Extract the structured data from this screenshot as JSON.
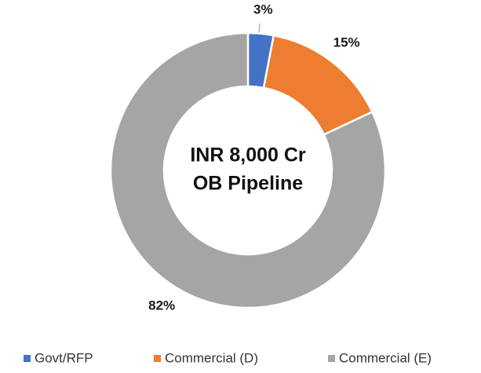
{
  "chart_data": {
    "type": "donut",
    "categories": [
      "Govt/RFP",
      "Commercial (D)",
      "Commercial (E)"
    ],
    "values": [
      3,
      15,
      82
    ],
    "value_labels": [
      "3%",
      "15%",
      "82%"
    ],
    "colors": [
      "#4472c4",
      "#ed7d31",
      "#a5a5a5"
    ],
    "annotations": [
      "INR 8,000 Cr",
      "OB Pipeline"
    ],
    "legend": "bottom"
  }
}
